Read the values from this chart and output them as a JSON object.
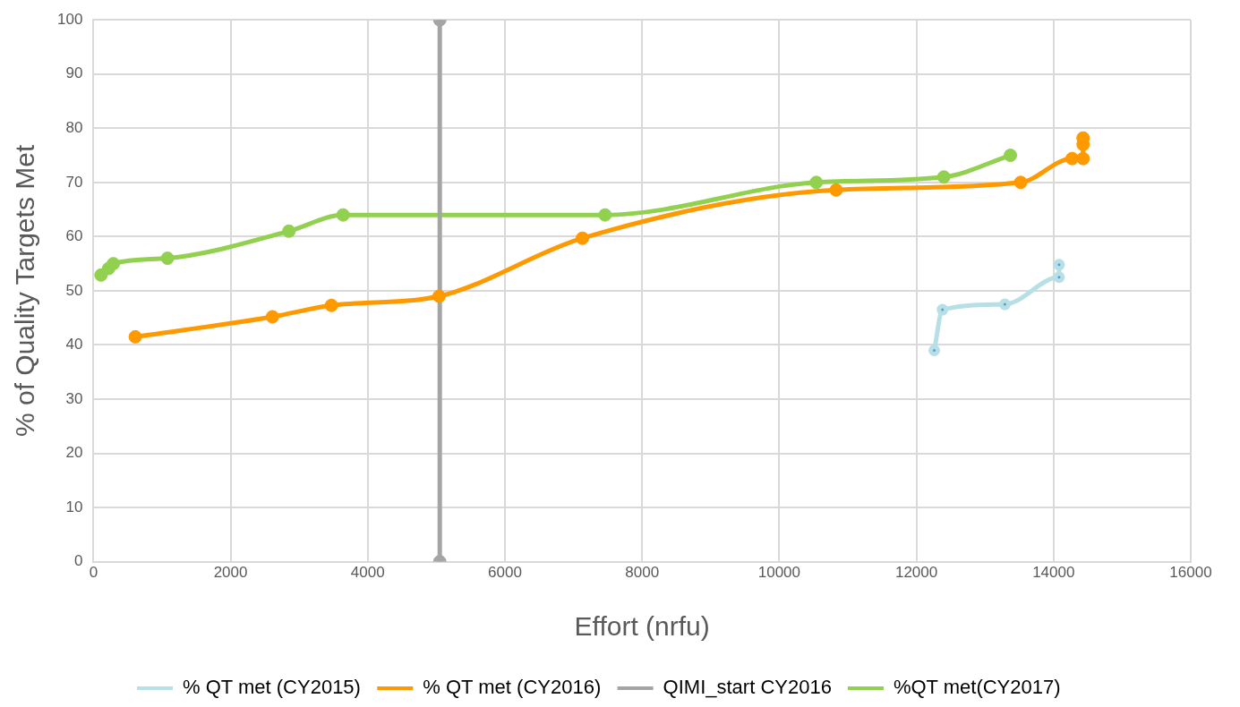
{
  "chart_data": {
    "type": "line",
    "xlabel": "Effort (nrfu)",
    "ylabel": "% of Quality Targets Met",
    "xlim": [
      0,
      16000
    ],
    "xticks": [
      0,
      2000,
      4000,
      6000,
      8000,
      10000,
      12000,
      14000,
      16000
    ],
    "ylim": [
      0,
      100
    ],
    "yticks": [
      0,
      10,
      20,
      30,
      40,
      50,
      60,
      70,
      80,
      90,
      100
    ],
    "grid": true,
    "legend": "bottom",
    "marker": "circle",
    "line_style": "solid",
    "series": [
      {
        "name": "% QT met (CY2015)",
        "color": "#b7dfe6",
        "x": [
          12260,
          12380,
          13290,
          14080,
          14080
        ],
        "values": [
          39,
          46.5,
          47.5,
          52.5,
          54.8
        ]
      },
      {
        "name": "% QT met (CY2016)",
        "color": "#ff9900",
        "x": [
          610,
          2610,
          3470,
          5040,
          7130,
          10830,
          13520,
          14270,
          14430,
          14430,
          14430
        ],
        "values": [
          41.5,
          45.2,
          47.3,
          49,
          59.7,
          68.6,
          70,
          74.4,
          74.4,
          77,
          78.2
        ]
      },
      {
        "name": "QIMI_start CY2016",
        "color": "#a5a5a5",
        "x": [
          5050,
          5050
        ],
        "values": [
          0,
          100
        ]
      },
      {
        "name": "%QT met(CY2017)",
        "color": "#92d050",
        "x": [
          110,
          220,
          290,
          1080,
          2850,
          3640,
          7460,
          10540,
          12400,
          13370
        ],
        "values": [
          52.9,
          54.1,
          55,
          56,
          61,
          64,
          64,
          70,
          71,
          75
        ]
      }
    ]
  }
}
